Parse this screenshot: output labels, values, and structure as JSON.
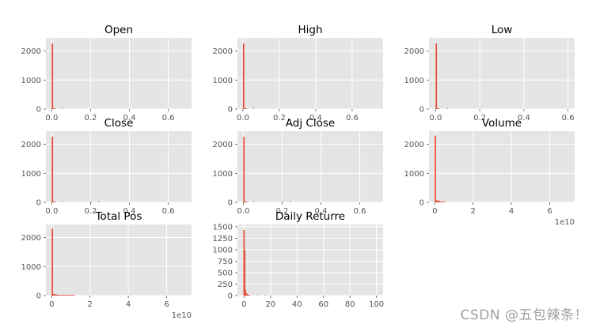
{
  "theme": {
    "panel_bg": "#E5E5E5",
    "grid": "#FFFFFF",
    "bar": "#E24A33",
    "tick_text": "#555555",
    "title_text": "#000000"
  },
  "watermark": "CSDN @五包辣条！",
  "chart_data": [
    {
      "type": "bar",
      "title": "Open",
      "xlim": [
        -0.03,
        0.72
      ],
      "ylim": [
        0,
        2450
      ],
      "xticks": [
        0.0,
        0.2,
        0.4,
        0.6
      ],
      "xtick_labels": [
        "0.0",
        "0.2",
        "0.4",
        "0.6"
      ],
      "yticks": [
        0,
        1000,
        2000
      ],
      "ytick_labels": [
        "0",
        "1000",
        "2000"
      ],
      "exponent": "",
      "bins": [
        [
          0.0,
          0.007,
          2260
        ],
        [
          0.007,
          0.014,
          30
        ],
        [
          0.014,
          0.021,
          10
        ],
        [
          0.05,
          0.057,
          5
        ]
      ]
    },
    {
      "type": "bar",
      "title": "High",
      "xlim": [
        -0.03,
        0.77
      ],
      "ylim": [
        0,
        2450
      ],
      "xticks": [
        0.0,
        0.2,
        0.4,
        0.6
      ],
      "xtick_labels": [
        "0.0",
        "0.2",
        "0.4",
        "0.6"
      ],
      "yticks": [
        0,
        1000,
        2000
      ],
      "ytick_labels": [
        "0",
        "1000",
        "2000"
      ],
      "exponent": "",
      "bins": [
        [
          0.0,
          0.0075,
          2260
        ],
        [
          0.0075,
          0.015,
          30
        ],
        [
          0.015,
          0.0225,
          10
        ],
        [
          0.055,
          0.062,
          5
        ]
      ]
    },
    {
      "type": "bar",
      "title": "Low",
      "xlim": [
        -0.03,
        0.63
      ],
      "ylim": [
        0,
        2450
      ],
      "xticks": [
        0.0,
        0.2,
        0.4,
        0.6
      ],
      "xtick_labels": [
        "0.0",
        "0.2",
        "0.4",
        "0.6"
      ],
      "yticks": [
        0,
        1000,
        2000
      ],
      "ytick_labels": [
        "0",
        "1000",
        "2000"
      ],
      "exponent": "",
      "bins": [
        [
          0.0,
          0.006,
          2260
        ],
        [
          0.006,
          0.012,
          30
        ],
        [
          0.012,
          0.018,
          10
        ],
        [
          0.05,
          0.056,
          5
        ]
      ]
    },
    {
      "type": "bar",
      "title": "Close",
      "xlim": [
        -0.03,
        0.72
      ],
      "ylim": [
        0,
        2450
      ],
      "xticks": [
        0.0,
        0.2,
        0.4,
        0.6
      ],
      "xtick_labels": [
        "0.0",
        "0.2",
        "0.4",
        "0.6"
      ],
      "yticks": [
        0,
        1000,
        2000
      ],
      "ytick_labels": [
        "0",
        "1000",
        "2000"
      ],
      "exponent": "",
      "bins": [
        [
          0.0,
          0.007,
          2260
        ],
        [
          0.007,
          0.014,
          30
        ],
        [
          0.014,
          0.021,
          10
        ],
        [
          0.05,
          0.057,
          5
        ],
        [
          0.2,
          0.207,
          3
        ],
        [
          0.24,
          0.247,
          3
        ]
      ]
    },
    {
      "type": "bar",
      "title": "Adj Close",
      "xlim": [
        -0.03,
        0.72
      ],
      "ylim": [
        0,
        2450
      ],
      "xticks": [
        0.0,
        0.2,
        0.4,
        0.6
      ],
      "xtick_labels": [
        "0.0",
        "0.2",
        "0.4",
        "0.6"
      ],
      "yticks": [
        0,
        1000,
        2000
      ],
      "ytick_labels": [
        "0",
        "1000",
        "2000"
      ],
      "exponent": "",
      "bins": [
        [
          0.0,
          0.007,
          2260
        ],
        [
          0.007,
          0.014,
          30
        ],
        [
          0.014,
          0.021,
          10
        ],
        [
          0.05,
          0.057,
          5
        ],
        [
          0.2,
          0.207,
          3
        ],
        [
          0.24,
          0.247,
          3
        ]
      ]
    },
    {
      "type": "bar",
      "title": "Volume",
      "xlim": [
        -0.3,
        7.3
      ],
      "ylim": [
        0,
        2450
      ],
      "xticks": [
        0,
        2,
        4,
        6
      ],
      "xtick_labels": [
        "0",
        "2",
        "4",
        "6"
      ],
      "yticks": [
        0,
        1000,
        2000
      ],
      "ytick_labels": [
        "0",
        "1000",
        "2000"
      ],
      "exponent": "1e10",
      "bins": [
        [
          0.0,
          0.07,
          2300
        ],
        [
          0.07,
          0.14,
          70
        ],
        [
          0.14,
          0.21,
          55
        ],
        [
          0.21,
          0.28,
          45
        ],
        [
          0.28,
          0.35,
          30
        ],
        [
          0.35,
          0.42,
          20
        ],
        [
          0.42,
          0.49,
          10
        ],
        [
          0.49,
          0.56,
          5
        ]
      ]
    },
    {
      "type": "bar",
      "title": "Total Pos",
      "xlim": [
        -0.3,
        7.3
      ],
      "ylim": [
        0,
        2450
      ],
      "xticks": [
        0,
        2,
        4,
        6
      ],
      "xtick_labels": [
        "0",
        "2",
        "4",
        "6"
      ],
      "yticks": [
        0,
        1000,
        2000
      ],
      "ytick_labels": [
        "0",
        "1000",
        "2000"
      ],
      "exponent": "1e10",
      "bins": [
        [
          0.0,
          0.07,
          2300
        ],
        [
          0.07,
          0.14,
          60
        ],
        [
          0.14,
          0.21,
          45
        ],
        [
          0.21,
          0.28,
          35
        ],
        [
          0.28,
          0.35,
          30
        ],
        [
          0.35,
          0.42,
          25
        ],
        [
          0.42,
          0.49,
          20
        ],
        [
          0.49,
          0.56,
          20
        ],
        [
          0.56,
          0.63,
          15
        ],
        [
          0.63,
          0.7,
          12
        ],
        [
          0.7,
          0.77,
          10
        ],
        [
          0.77,
          0.84,
          10
        ],
        [
          0.84,
          0.91,
          8
        ],
        [
          0.91,
          0.98,
          8
        ],
        [
          0.98,
          1.05,
          6
        ],
        [
          1.05,
          1.12,
          5
        ],
        [
          1.12,
          1.2,
          5
        ]
      ]
    },
    {
      "type": "bar",
      "title": "Daily Returre",
      "xlim": [
        -5,
        105
      ],
      "ylim": [
        0,
        1550
      ],
      "xticks": [
        0,
        20,
        40,
        60,
        80,
        100
      ],
      "xtick_labels": [
        "0",
        "20",
        "40",
        "60",
        "80",
        "100"
      ],
      "yticks": [
        0,
        250,
        500,
        750,
        1000,
        1250,
        1500
      ],
      "ytick_labels": [
        "0",
        "250",
        "500",
        "750",
        "1000",
        "1250",
        "1500"
      ],
      "exponent": "",
      "bins": [
        [
          -0.5,
          0.5,
          1430
        ],
        [
          0.5,
          1.0,
          990
        ],
        [
          1.0,
          1.5,
          120
        ],
        [
          1.5,
          2.0,
          60
        ],
        [
          2.0,
          2.5,
          40
        ],
        [
          2.5,
          3.0,
          25
        ],
        [
          3.0,
          3.5,
          15
        ],
        [
          3.5,
          4.0,
          10
        ],
        [
          4.0,
          4.5,
          5
        ],
        [
          10,
          10.5,
          2
        ],
        [
          16,
          16.5,
          1
        ]
      ]
    }
  ]
}
